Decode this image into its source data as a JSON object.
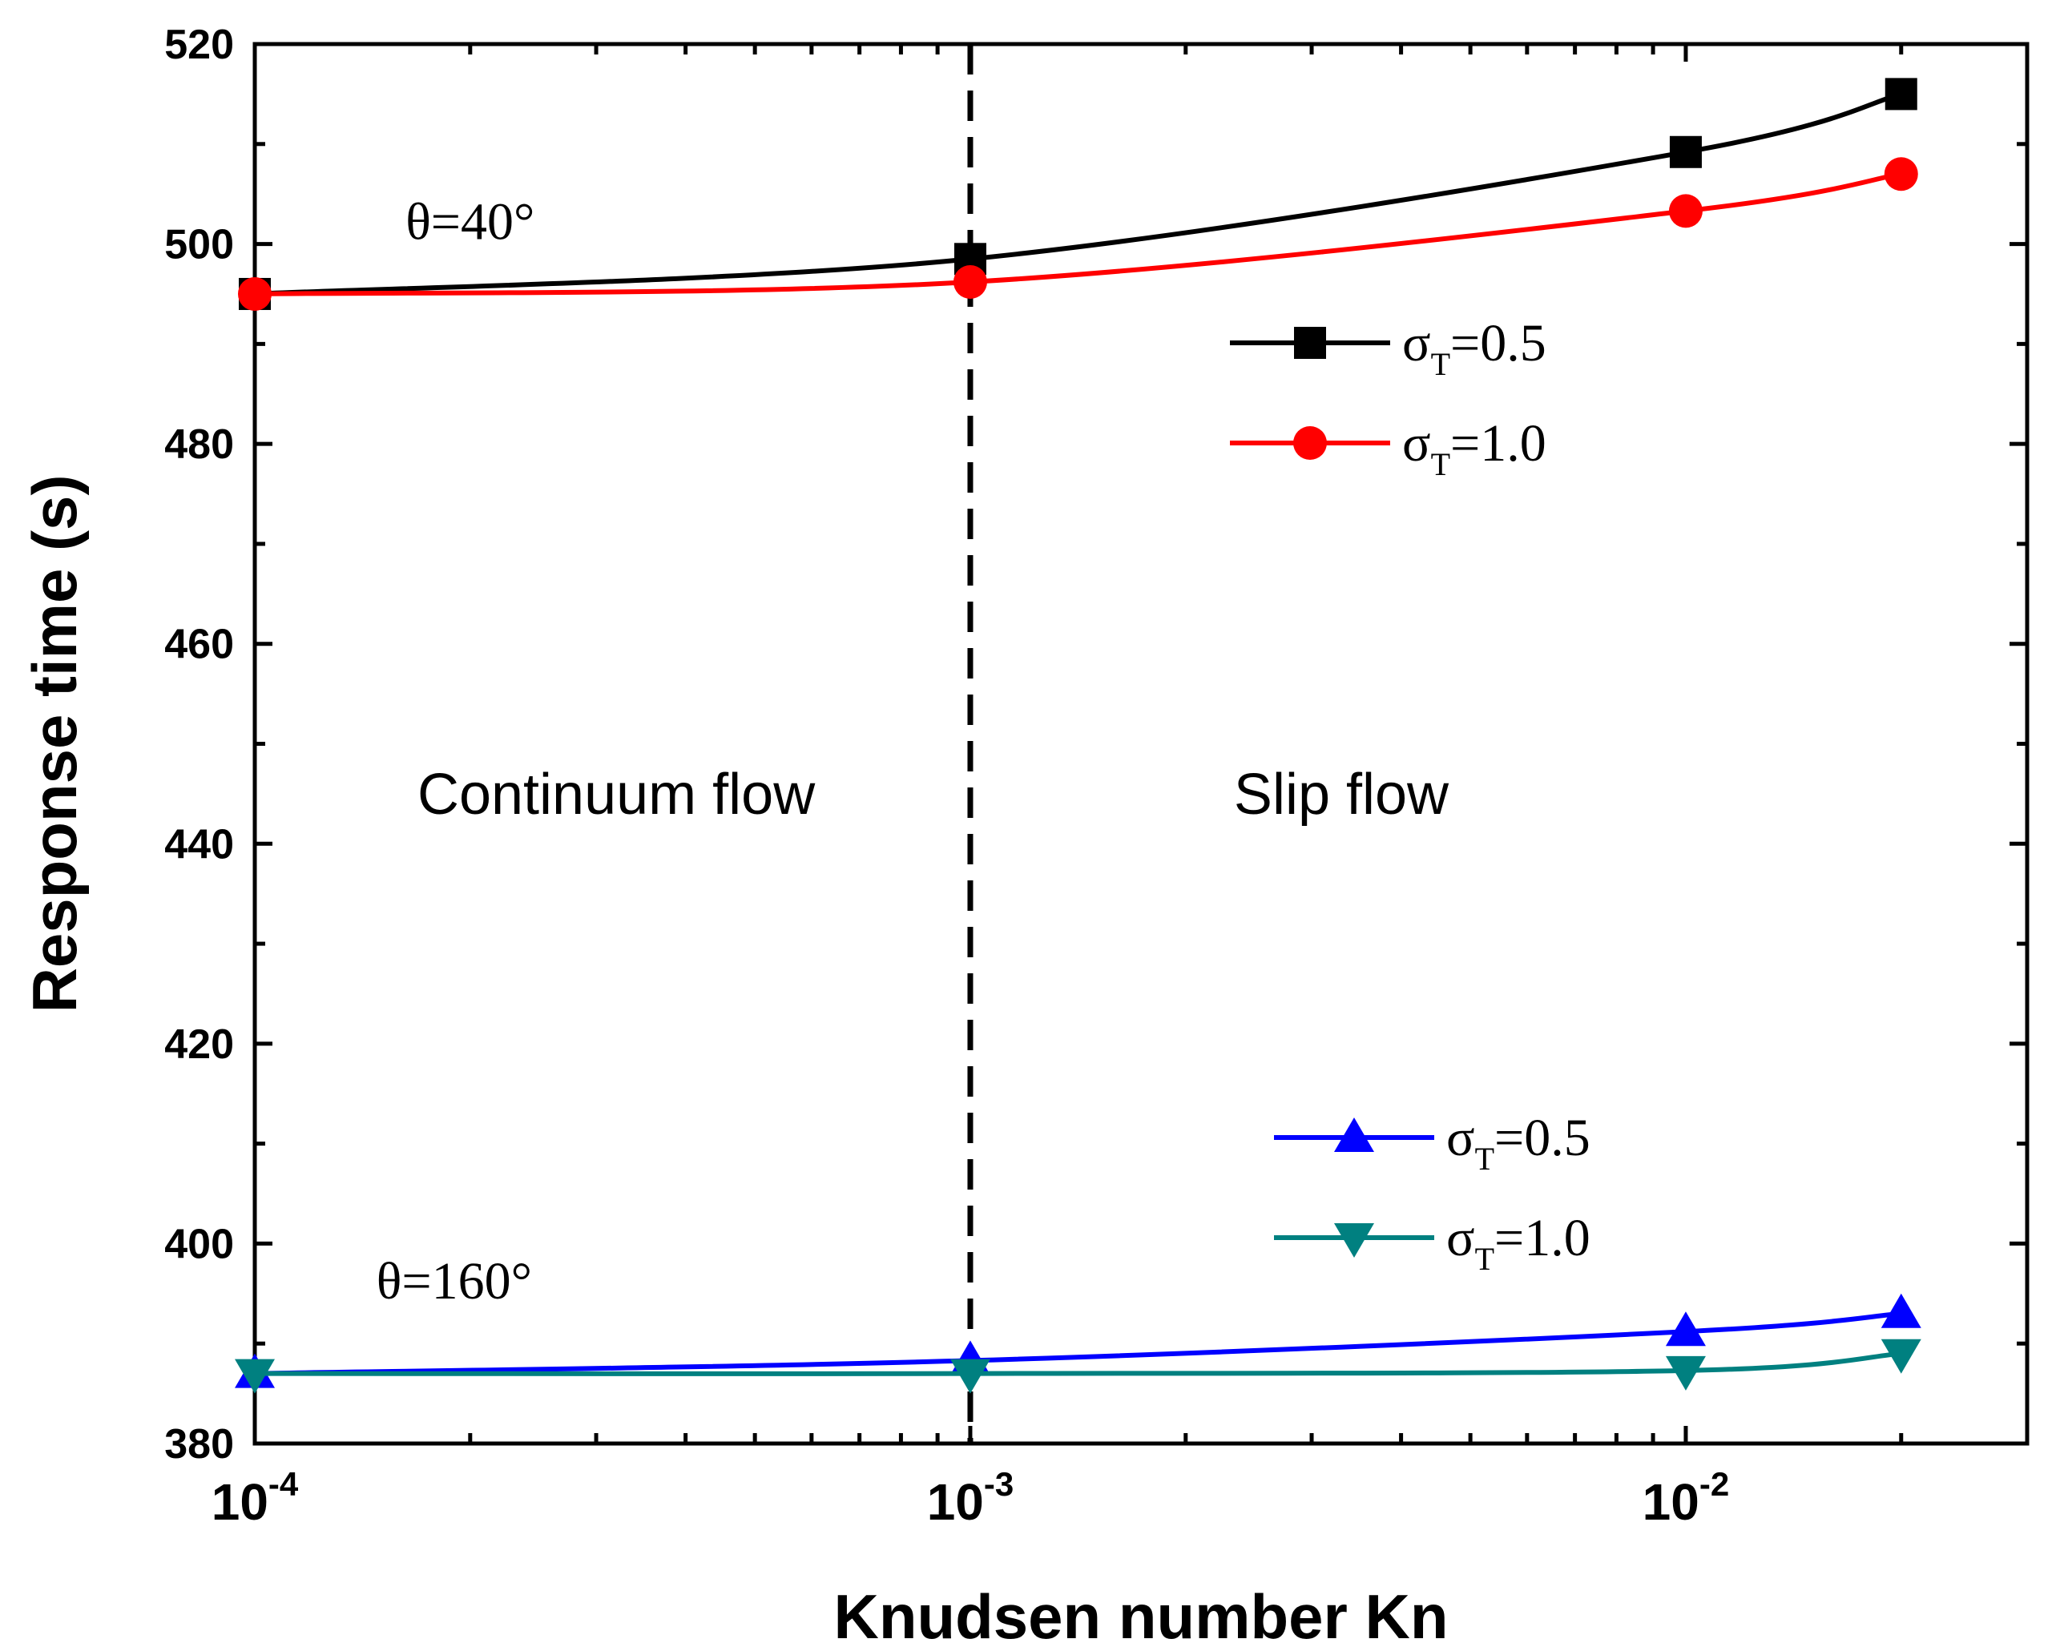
{
  "chart_data": {
    "type": "line",
    "xscale": "log",
    "xlabel": "Knudsen number Kn",
    "ylabel": "Response time (s)",
    "xlim": [
      0.0001,
      0.03
    ],
    "ylim": [
      380,
      520
    ],
    "y_ticks": [
      380,
      400,
      420,
      440,
      460,
      480,
      500,
      520
    ],
    "x_ticks": [
      {
        "value": 0.0001,
        "base": "10",
        "exp": "-4"
      },
      {
        "value": 0.001,
        "base": "10",
        "exp": "-3"
      },
      {
        "value": 0.01,
        "base": "10",
        "exp": "-2"
      }
    ],
    "vertical_line": {
      "x": 0.001,
      "style": "dashed"
    },
    "annotations": [
      {
        "id": "continuum",
        "text": "Continuum flow",
        "x": 0.00032,
        "y": 443
      },
      {
        "id": "slip",
        "text": "Slip flow",
        "x": 0.0033,
        "y": 443
      },
      {
        "id": "theta40",
        "text": "θ=40°",
        "x": 0.0002,
        "y": 500.5
      },
      {
        "id": "theta160",
        "text": "θ=160°",
        "x": 0.00019,
        "y": 394.5
      }
    ],
    "series": [
      {
        "name": "σT=0.5",
        "group": "θ=40°",
        "sigma": "σ",
        "sub": "T",
        "value_text": "=0.5",
        "color": "#000000",
        "marker": "square",
        "x": [
          0.0001,
          0.001,
          0.01,
          0.02
        ],
        "y": [
          495.0,
          498.5,
          509.2,
          515.0
        ]
      },
      {
        "name": "σT=1.0",
        "group": "θ=40°",
        "sigma": "σ",
        "sub": "T",
        "value_text": "=1.0",
        "color": "#ff0000",
        "marker": "circle",
        "x": [
          0.0001,
          0.001,
          0.01,
          0.02
        ],
        "y": [
          495.0,
          496.2,
          503.3,
          507.0
        ]
      },
      {
        "name": "σT=0.5",
        "group": "θ=160°",
        "sigma": "σ",
        "sub": "T",
        "value_text": "=0.5",
        "color": "#0000ff",
        "marker": "triangle-up",
        "x": [
          0.0001,
          0.001,
          0.01,
          0.02
        ],
        "y": [
          387.0,
          388.3,
          391.2,
          393.0
        ]
      },
      {
        "name": "σT=1.0",
        "group": "θ=160°",
        "sigma": "σ",
        "sub": "T",
        "value_text": "=1.0",
        "color": "#008080",
        "marker": "triangle-down",
        "x": [
          0.0001,
          0.001,
          0.01,
          0.02
        ],
        "y": [
          387.0,
          387.0,
          387.3,
          389.0
        ]
      }
    ],
    "legends": [
      {
        "id": "legend-top",
        "series": [
          0,
          1
        ]
      },
      {
        "id": "legend-bottom",
        "series": [
          2,
          3
        ]
      }
    ]
  }
}
